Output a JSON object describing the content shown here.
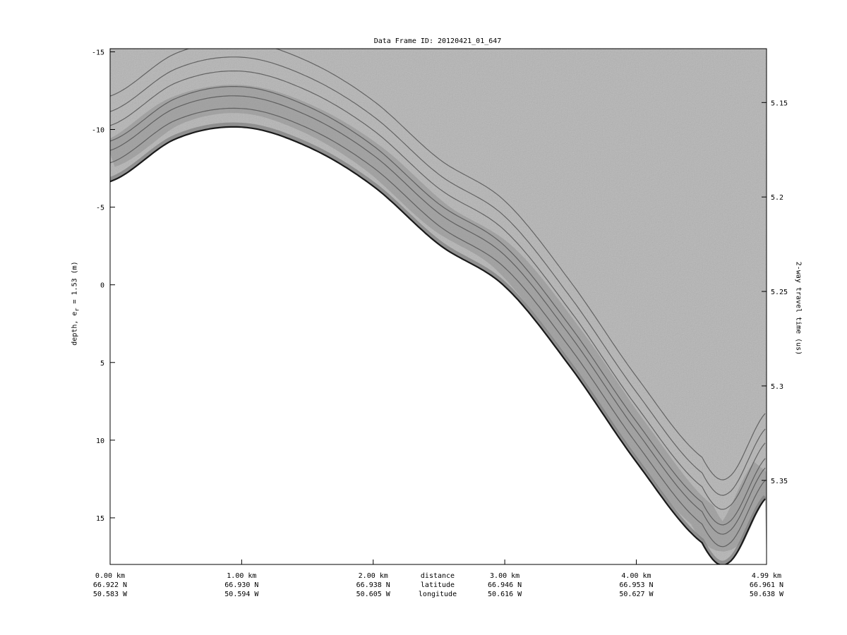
{
  "chart_data": {
    "type": "line",
    "title": "Data Frame ID: 20120421_01_647",
    "ylabel": "depth, e_r = 1.53 (m)",
    "ylabel_main": "depth, e",
    "ylabel_sub": "r",
    "ylabel_tail": " = 1.53 (m)",
    "y2label": "2-way travel time (us)",
    "ylim": [
      -15.2,
      18.0
    ],
    "y_inverted": true,
    "yticks": [
      -15,
      -10,
      -5,
      0,
      5,
      10,
      15
    ],
    "y2lim": [
      5.1215,
      5.3945
    ],
    "y2ticks": [
      "5.15",
      "5.2",
      "5.25",
      "5.3",
      "5.35"
    ],
    "xlim": [
      0,
      4.99
    ],
    "xlabel_rows": [
      "distance",
      "latitude",
      "longitude"
    ],
    "xticks": [
      {
        "km": 0.0,
        "distance": "0.00 km",
        "latitude": "66.922 N",
        "longitude": "50.583 W"
      },
      {
        "km": 1.0,
        "distance": "1.00 km",
        "latitude": "66.930 N",
        "longitude": "50.594 W"
      },
      {
        "km": 2.0,
        "distance": "2.00 km",
        "latitude": "66.938 N",
        "longitude": "50.605 W"
      },
      {
        "km": 3.0,
        "distance": "3.00 km",
        "latitude": "66.946 N",
        "longitude": "50.616 W"
      },
      {
        "km": 4.0,
        "distance": "4.00 km",
        "latitude": "66.953 N",
        "longitude": "50.627 W"
      },
      {
        "km": 4.99,
        "distance": "4.99 km",
        "latitude": "66.961 N",
        "longitude": "50.638 W"
      }
    ],
    "surface": {
      "x_km": [
        0,
        0.5,
        1.0,
        1.5,
        2.0,
        2.5,
        3.0,
        3.5,
        4.0,
        4.5,
        4.7,
        4.99
      ],
      "depth_m": [
        -6.65,
        -9.4,
        -10.15,
        -8.9,
        -6.35,
        -2.6,
        0.1,
        5.3,
        11.4,
        16.6,
        17.9,
        13.7
      ]
    },
    "layer_offsets_m": [
      1.2,
      2.0,
      2.6,
      3.6,
      4.5,
      5.5
    ],
    "colors": {
      "background": "#b4b4b4",
      "surface": "#1a1a1a",
      "layer": "#555555",
      "below": "#ffffff"
    }
  }
}
